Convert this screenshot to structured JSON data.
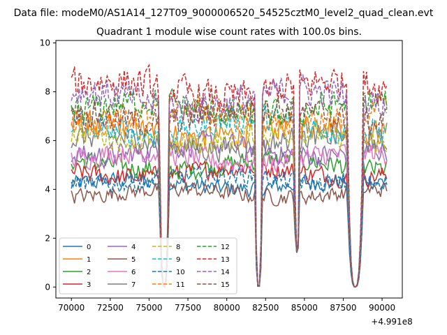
{
  "chart_data": {
    "type": "line",
    "suptitle": "Data file: modeM0/AS1A14_127T09_9000006520_54525cztM0_level2_quad_clean.evt",
    "title": "Quadrant 1 module wise count rates with 100.0s bins.",
    "xlabel": "",
    "ylabel": "",
    "offset_text": "+4.991e8",
    "xlim": [
      69000,
      91300
    ],
    "ylim": [
      -0.45,
      10.1
    ],
    "x_range": [
      70000,
      90300
    ],
    "x_ticks": [
      70000,
      72500,
      75000,
      77500,
      80000,
      82500,
      85000,
      87500,
      90000
    ],
    "x_tick_labels": [
      "70000",
      "72500",
      "75000",
      "77500",
      "80000",
      "82500",
      "85000",
      "87500",
      "90000"
    ],
    "y_ticks": [
      0,
      2,
      4,
      6,
      8,
      10
    ],
    "y_tick_labels": [
      "0",
      "2",
      "4",
      "6",
      "8",
      "10"
    ],
    "legend_position": "lower-left",
    "gaps": [
      {
        "start": 75650,
        "end": 76300,
        "min": 0.0,
        "note": "deep drop to near zero"
      },
      {
        "start": 81800,
        "end": 82300,
        "min": 0.0,
        "note": "drop to zero"
      },
      {
        "start": 84350,
        "end": 84700,
        "min": 1.4,
        "note": "partial dip"
      },
      {
        "start": 87750,
        "end": 88800,
        "min": 0.0,
        "note": "drop to zero"
      }
    ],
    "series": [
      {
        "name": "0",
        "color": "#1f77b4",
        "style": "solid",
        "mean": 4.2
      },
      {
        "name": "1",
        "color": "#ff7f0e",
        "style": "solid",
        "mean": 6.4
      },
      {
        "name": "2",
        "color": "#2ca02c",
        "style": "solid",
        "mean": 5.0
      },
      {
        "name": "3",
        "color": "#d62728",
        "style": "solid",
        "mean": 4.7
      },
      {
        "name": "4",
        "color": "#9467bd",
        "style": "solid",
        "mean": 5.6
      },
      {
        "name": "5",
        "color": "#8c564b",
        "style": "solid",
        "mean": 3.85
      },
      {
        "name": "6",
        "color": "#e377c2",
        "style": "solid",
        "mean": 5.3
      },
      {
        "name": "7",
        "color": "#7f7f7f",
        "style": "solid",
        "mean": 5.9
      },
      {
        "name": "8",
        "color": "#bcbd22",
        "style": "dashed",
        "mean": 6.1
      },
      {
        "name": "9",
        "color": "#17becf",
        "style": "dashed",
        "mean": 6.6
      },
      {
        "name": "10",
        "color": "#1f77b4",
        "style": "dashed",
        "mean": 4.4
      },
      {
        "name": "11",
        "color": "#ff7f0e",
        "style": "dashed",
        "mean": 6.95
      },
      {
        "name": "12",
        "color": "#2ca02c",
        "style": "dashed",
        "mean": 7.3
      },
      {
        "name": "13",
        "color": "#d62728",
        "style": "dashed",
        "mean": 8.1
      },
      {
        "name": "14",
        "color": "#9467bd",
        "style": "dashed",
        "mean": 7.7
      },
      {
        "name": "15",
        "color": "#8c564b",
        "style": "dashed",
        "mean": 7.05
      }
    ]
  }
}
